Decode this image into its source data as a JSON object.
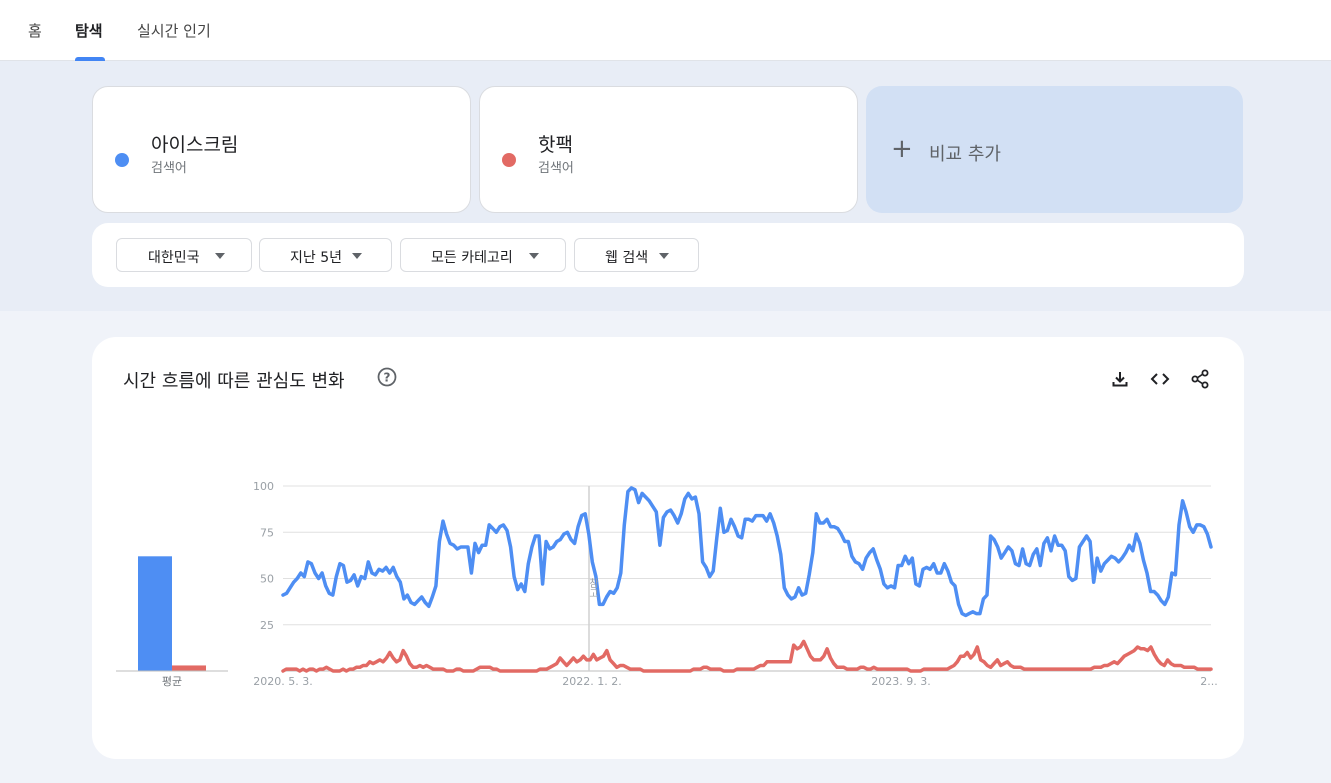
{
  "nav": {
    "tabs": [
      {
        "label": "홈"
      },
      {
        "label": "탐색"
      },
      {
        "label": "실시간 인기"
      }
    ]
  },
  "terms": [
    {
      "name": "아이스크림",
      "type": "검색어",
      "color": "#4e8ef3"
    },
    {
      "name": "핫팩",
      "type": "검색어",
      "color": "#e26a64"
    }
  ],
  "add_compare": {
    "icon": "plus-icon",
    "label": "비교 추가"
  },
  "filters": [
    {
      "label": "대한민국"
    },
    {
      "label": "지난 5년"
    },
    {
      "label": "모든 카테고리"
    },
    {
      "label": "웹 검색"
    }
  ],
  "chart": {
    "title": "시간 흐름에 따른 관심도 변화",
    "icons": [
      "help-icon",
      "download-icon",
      "embed-code-icon",
      "share-icon"
    ],
    "note_marker": "참고"
  },
  "chart_data": {
    "type": "line",
    "ylim": [
      0,
      100
    ],
    "yticks": [
      25,
      50,
      75,
      100
    ],
    "xtick_labels": [
      "2020. 5. 3.",
      "2022. 1. 2.",
      "2023. 9. 3.",
      "2..."
    ],
    "grid": true,
    "legend": "none",
    "average_bars": {
      "label": "평균",
      "values": [
        62,
        3
      ]
    },
    "series": [
      {
        "name": "아이스크림",
        "color": "#4e8ef3",
        "values": [
          41,
          42,
          45,
          48,
          50,
          53,
          51,
          59,
          58,
          53,
          50,
          53,
          46,
          42,
          41,
          51,
          58,
          57,
          48,
          49,
          52,
          46,
          51,
          50,
          59,
          53,
          52,
          55,
          54,
          56,
          53,
          56,
          51,
          48,
          39,
          41,
          37,
          36,
          38,
          40,
          37,
          35,
          40,
          46,
          70,
          81,
          74,
          69,
          68,
          66,
          67,
          67,
          67,
          53,
          69,
          64,
          68,
          68,
          79,
          77,
          75,
          78,
          79,
          76,
          67,
          51,
          44,
          47,
          43,
          58,
          67,
          73,
          73,
          47,
          70,
          66,
          67,
          70,
          71,
          74,
          75,
          71,
          69,
          78,
          84,
          85,
          74,
          59,
          51,
          36,
          36,
          40,
          43,
          42,
          45,
          53,
          79,
          97,
          99,
          98,
          91,
          96,
          94,
          92,
          89,
          86,
          68,
          83,
          86,
          87,
          84,
          80,
          85,
          93,
          96,
          93,
          94,
          85,
          59,
          56,
          51,
          54,
          72,
          88,
          75,
          76,
          82,
          78,
          73,
          72,
          82,
          82,
          81,
          84,
          84,
          84,
          81,
          85,
          80,
          73,
          63,
          45,
          41,
          39,
          40,
          45,
          41,
          42,
          52,
          64,
          85,
          80,
          80,
          82,
          78,
          78,
          77,
          74,
          70,
          70,
          62,
          59,
          58,
          55,
          61,
          64,
          66,
          60,
          55,
          47,
          45,
          46,
          45,
          57,
          57,
          62,
          58,
          61,
          47,
          46,
          55,
          56,
          55,
          58,
          53,
          53,
          58,
          54,
          48,
          46,
          36,
          31,
          30,
          31,
          32,
          31,
          31,
          39,
          41,
          73,
          71,
          67,
          61,
          64,
          67,
          65,
          58,
          57,
          66,
          58,
          57,
          63,
          66,
          57,
          69,
          72,
          65,
          73,
          68,
          68,
          65,
          51,
          49,
          50,
          67,
          70,
          73,
          70,
          48,
          61,
          54,
          58,
          60,
          62,
          61,
          59,
          61,
          64,
          68,
          65,
          74,
          69,
          60,
          53,
          43,
          43,
          41,
          38,
          36,
          40,
          53,
          52,
          79,
          92,
          86,
          78,
          75,
          79,
          79,
          78,
          74,
          67
        ]
      },
      {
        "name": "핫팩",
        "color": "#e26a64",
        "values": [
          0,
          1,
          1,
          1,
          1,
          0,
          1,
          0,
          1,
          1,
          0,
          1,
          1,
          2,
          1,
          0,
          0,
          0,
          1,
          0,
          1,
          1,
          2,
          2,
          3,
          3,
          5,
          4,
          5,
          6,
          5,
          7,
          10,
          7,
          5,
          6,
          11,
          8,
          4,
          2,
          2,
          3,
          2,
          3,
          2,
          1,
          1,
          1,
          1,
          0,
          0,
          0,
          1,
          1,
          0,
          0,
          0,
          0,
          1,
          2,
          2,
          2,
          2,
          1,
          1,
          0,
          0,
          0,
          0,
          0,
          0,
          0,
          0,
          0,
          0,
          0,
          0,
          1,
          1,
          1,
          2,
          3,
          4,
          7,
          5,
          3,
          5,
          7,
          5,
          6,
          8,
          6,
          6,
          9,
          6,
          7,
          8,
          11,
          6,
          4,
          2,
          3,
          3,
          2,
          1,
          1,
          1,
          1,
          0,
          0,
          0,
          0,
          0,
          0,
          0,
          0,
          0,
          0,
          0,
          0,
          0,
          0,
          0,
          1,
          1,
          1,
          2,
          2,
          1,
          1,
          1,
          1,
          0,
          0,
          0,
          0,
          1,
          1,
          1,
          1,
          1,
          1,
          2,
          3,
          3,
          5,
          5,
          5,
          5,
          5,
          5,
          5,
          5,
          14,
          12,
          13,
          16,
          12,
          8,
          6,
          6,
          6,
          8,
          12,
          7,
          4,
          2,
          2,
          2,
          1,
          1,
          1,
          1,
          2,
          2,
          1,
          1,
          2,
          1,
          1,
          1,
          1,
          1,
          1,
          1,
          1,
          1,
          1,
          0,
          0,
          0,
          0,
          1,
          1,
          1,
          1,
          1,
          1,
          1,
          1,
          2,
          3,
          5,
          8,
          8,
          10,
          7,
          9,
          13,
          6,
          5,
          3,
          2,
          4,
          6,
          3,
          4,
          5,
          3,
          2,
          2,
          2,
          1,
          1,
          1,
          1,
          1,
          1,
          1,
          1,
          1,
          1,
          1,
          1,
          1,
          1,
          1,
          1,
          1,
          1,
          1,
          1,
          1,
          2,
          2,
          2,
          3,
          3,
          4,
          5,
          4,
          6,
          8,
          9,
          10,
          11,
          13,
          12,
          12,
          11,
          13,
          9,
          6,
          4,
          3,
          6,
          4,
          3,
          3,
          3,
          2,
          2,
          2,
          2,
          1,
          1,
          1,
          1,
          1
        ]
      }
    ]
  }
}
